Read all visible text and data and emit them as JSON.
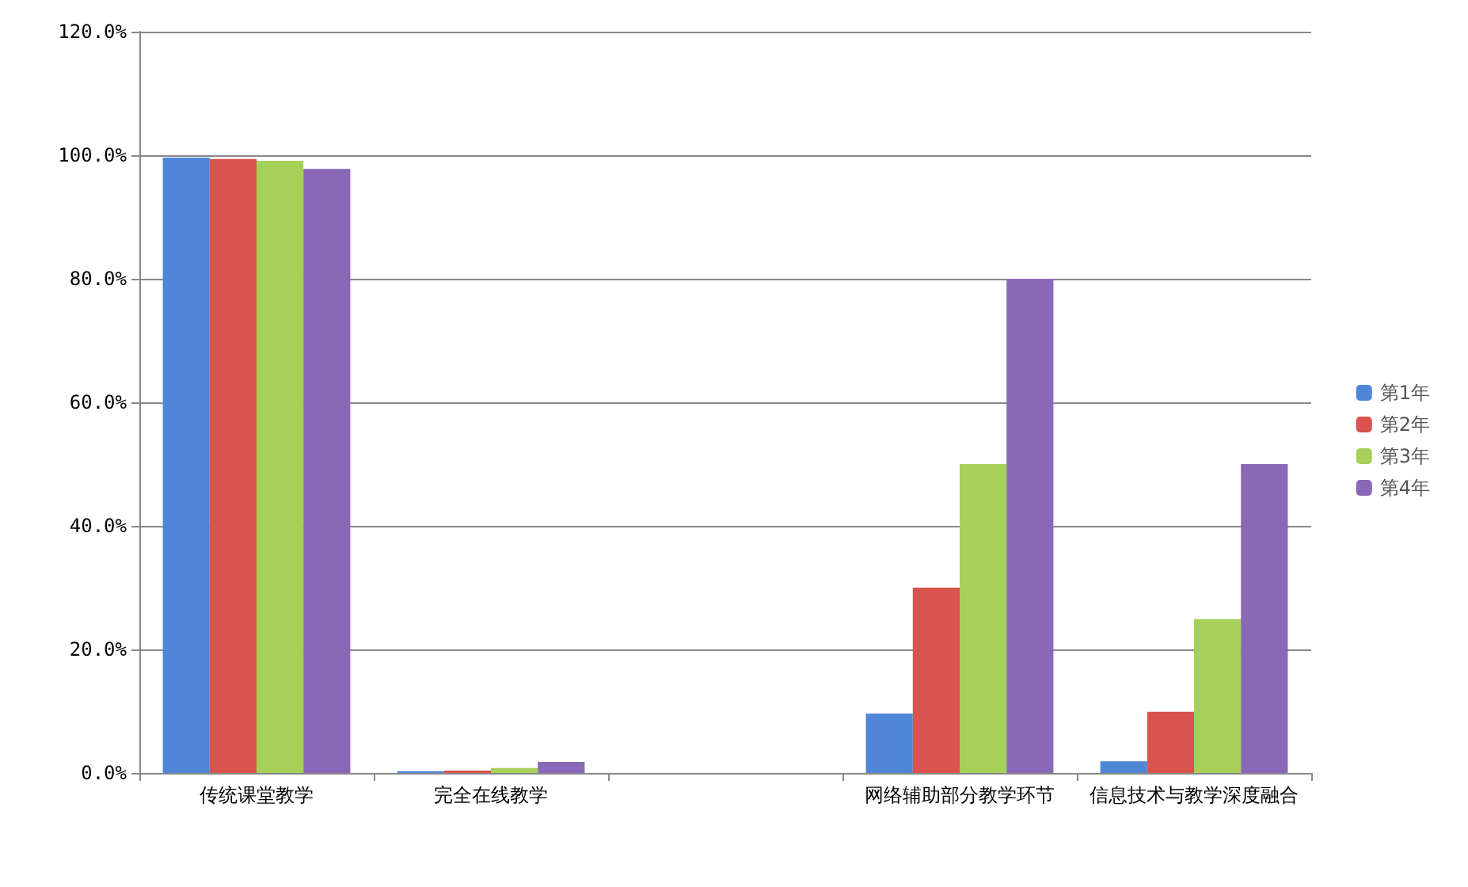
{
  "chart_data": {
    "type": "bar",
    "categories": [
      "传统课堂教学",
      "完全在线教学",
      null,
      "网络辅助部分教学环节",
      "信息技术与教学深度融合"
    ],
    "series": [
      {
        "name": "第1年",
        "color": "#4f86d8",
        "values": [
          99.6,
          0.3,
          null,
          9.6,
          1.9
        ]
      },
      {
        "name": "第2年",
        "color": "#d9534f",
        "values": [
          99.4,
          0.4,
          null,
          30,
          9.9
        ]
      },
      {
        "name": "第3年",
        "color": "#a6d05a",
        "values": [
          99.1,
          0.8,
          null,
          50,
          24.9
        ]
      },
      {
        "name": "第4年",
        "color": "#8a68b8",
        "values": [
          97.8,
          1.8,
          null,
          80,
          50
        ]
      }
    ],
    "ylim": [
      0,
      120
    ],
    "yticks": [
      {
        "value": 0,
        "label": "0.0%"
      },
      {
        "value": 20,
        "label": "20.0%"
      },
      {
        "value": 40,
        "label": "40.0%"
      },
      {
        "value": 60,
        "label": "60.0%"
      },
      {
        "value": 80,
        "label": "80.0%"
      },
      {
        "value": 100,
        "label": "100.0%"
      },
      {
        "value": 120,
        "label": "120.0%"
      }
    ],
    "grid": "y",
    "legend": "right"
  }
}
